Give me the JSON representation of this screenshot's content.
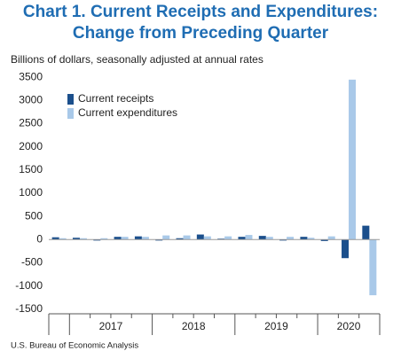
{
  "chart_data": {
    "type": "bar",
    "title": "Chart 1. Current Receipts and Expenditures:",
    "subtitle": "Change from Preceding Quarter",
    "y_label": "Billions of dollars, seasonally adjusted at annual rates",
    "source": "U.S. Bureau of Economic Analysis",
    "categories": [
      null,
      null,
      null,
      null,
      null,
      null,
      null,
      null,
      null,
      null,
      null,
      null,
      null,
      null,
      null,
      null
    ],
    "year_labels": [
      "2017",
      "2018",
      "2019",
      "2020"
    ],
    "series": [
      {
        "name": "Current receipts",
        "color": "#1b4f8c",
        "values": [
          50,
          40,
          -20,
          60,
          70,
          -20,
          30,
          110,
          20,
          60,
          80,
          -20,
          60,
          -30,
          -400,
          300
        ]
      },
      {
        "name": "Current expenditures",
        "color": "#a9c9e9",
        "values": [
          30,
          30,
          30,
          60,
          60,
          90,
          90,
          70,
          70,
          100,
          60,
          60,
          40,
          70,
          3450,
          -1200
        ]
      }
    ],
    "ylim": [
      -1600,
      3600
    ],
    "yticks": [
      -1500,
      -1000,
      -500,
      0,
      500,
      1000,
      1500,
      2000,
      2500,
      3000,
      3500
    ],
    "legend": "top-left",
    "grid": false
  }
}
